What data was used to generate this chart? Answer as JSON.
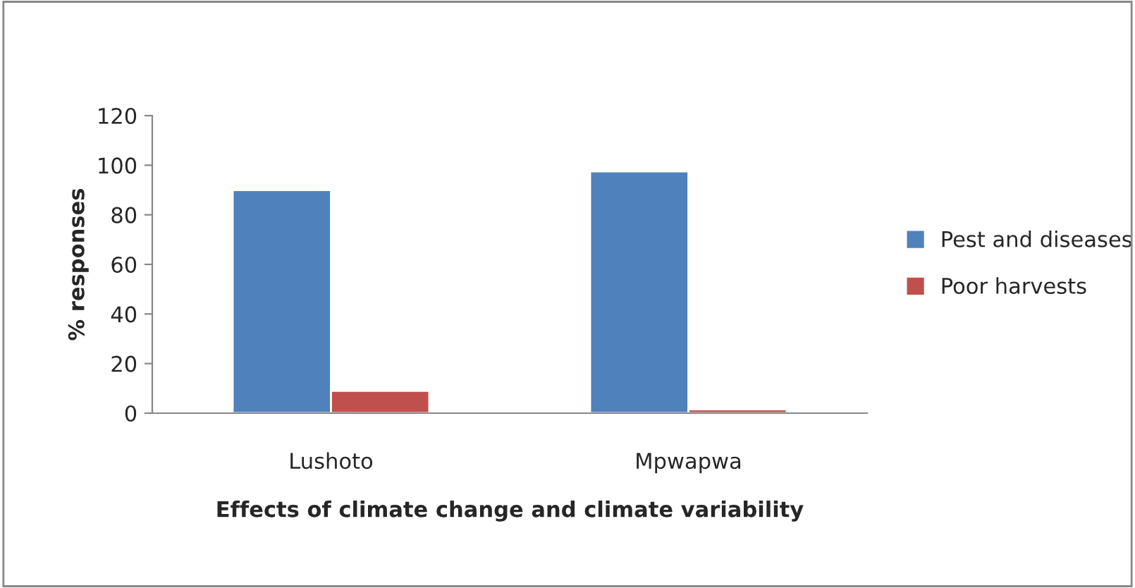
{
  "chart_data": {
    "type": "bar",
    "xlabel": "Effects of climate change and climate variability",
    "ylabel": "% responses",
    "categories": [
      "Lushoto",
      "Mpwapwa"
    ],
    "series": [
      {
        "name": "Pest and diseases",
        "color": "#4f81bd",
        "values": [
          90,
          97.5
        ]
      },
      {
        "name": "Poor harvests",
        "color": "#c0504d",
        "values": [
          9,
          1.5
        ]
      }
    ],
    "ylim": [
      0,
      120
    ],
    "yticks": [
      0,
      20,
      40,
      60,
      80,
      100,
      120
    ],
    "grid": false,
    "legend": "right"
  }
}
